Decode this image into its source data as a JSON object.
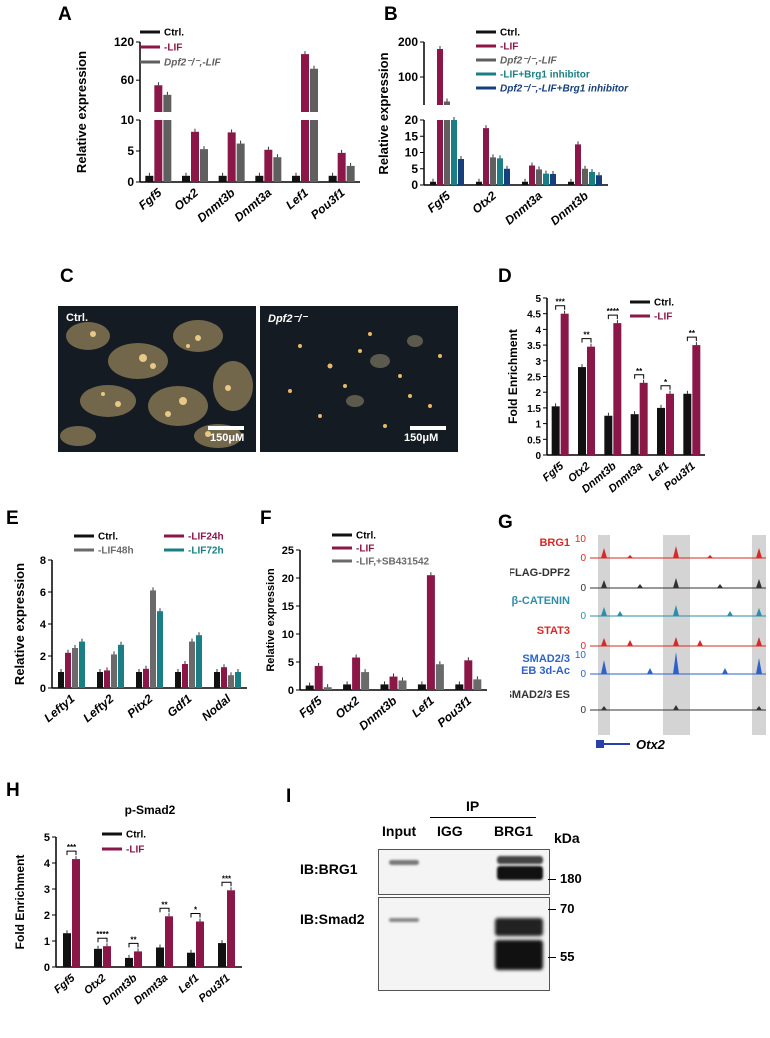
{
  "colors": {
    "ctrl": "#111111",
    "lif": "#8a1748",
    "ko": "#5f5f5f",
    "brg1": "#1a7e85",
    "kobrg1": "#173f7c",
    "gray": "#6a6a6a",
    "red": "#d62a28",
    "blue": "#2f62c8",
    "teal": "#2e8da8"
  },
  "ytitle": "Relative expression",
  "fe_title": "Fold Enrichment",
  "panels": {
    "A": {
      "label": "A",
      "legend": [
        "Ctrl.",
        "-LIF",
        "Dpf2⁻/⁻,-LIF"
      ]
    },
    "B": {
      "label": "B",
      "legend": [
        "Ctrl.",
        "-LIF",
        "Dpf2⁻/⁻,-LIF",
        "-LIF+Brg1 inhibitor",
        "Dpf2⁻/⁻,-LIF+Brg1 inhibitor"
      ]
    },
    "C": {
      "label": "C",
      "left": "Ctrl.",
      "right": "Dpf2⁻/⁻",
      "scale": "150μM"
    },
    "D": {
      "label": "D",
      "legend": [
        "Ctrl.",
        "-LIF"
      ]
    },
    "E": {
      "label": "E",
      "legend": [
        "Ctrl.",
        "-LIF24h",
        "-LIF48h",
        "-LIF72h"
      ]
    },
    "F": {
      "label": "F",
      "legend": [
        "Ctrl.",
        "-LIF",
        "-LIF,+SB431542"
      ]
    },
    "G": {
      "label": "G",
      "tracks": [
        "BRG1",
        "FLAG-DPF2",
        "β-CATENIN",
        "STAT3",
        "SMAD2/3\nEB 3d-Ac",
        "SMAD2/3 ES"
      ],
      "scale_top": "10",
      "scale_zero": "0",
      "gene": "Otx2"
    },
    "H": {
      "label": "H",
      "title": "p-Smad2",
      "legend": [
        "Ctrl.",
        "-LIF"
      ]
    },
    "I": {
      "label": "I",
      "ip": "IP",
      "lanes": [
        "Input",
        "IGG",
        "BRG1"
      ],
      "kda": "kDa",
      "rows": [
        "IB:BRG1",
        "IB:Smad2"
      ],
      "markers": [
        "180",
        "70",
        "55"
      ]
    }
  },
  "chart_data": [
    {
      "panel": "A",
      "type": "bar",
      "categories": [
        "Fgf5",
        "Otx2",
        "Dnmt3b",
        "Dnmt3a",
        "Lef1",
        "Pou3f1"
      ],
      "series": [
        {
          "name": "Ctrl.",
          "values": [
            1,
            1,
            1,
            1,
            1,
            1
          ]
        },
        {
          "name": "-LIF",
          "values": [
            52,
            8.1,
            8.0,
            5.2,
            101,
            4.7
          ]
        },
        {
          "name": "Dpf2⁻/⁻,-LIF",
          "values": [
            37,
            5.3,
            6.2,
            4.0,
            78,
            2.6
          ]
        }
      ],
      "ylim_lower": [
        0,
        10
      ],
      "ylim_upper": [
        10,
        120
      ],
      "ticks": [
        "0",
        "5",
        "10",
        "60",
        "120"
      ]
    },
    {
      "panel": "B",
      "type": "bar",
      "categories": [
        "Fgf5",
        "Otx2",
        "Dnmt3a",
        "Dnmt3b"
      ],
      "series": [
        {
          "name": "Ctrl.",
          "values": [
            1,
            1,
            1,
            1
          ]
        },
        {
          "name": "-LIF",
          "values": [
            180,
            17.5,
            6,
            12.5
          ]
        },
        {
          "name": "Dpf2⁻/⁻,-LIF",
          "values": [
            30,
            8.5,
            4.8,
            5
          ]
        },
        {
          "name": "-LIF+Brg1 inhibitor",
          "values": [
            20,
            8.2,
            3.5,
            4
          ]
        },
        {
          "name": "Dpf2⁻/⁻,-LIF+Brg1 inhibitor",
          "values": [
            8,
            5,
            3.4,
            3
          ]
        }
      ],
      "ylim_lower": [
        0,
        20
      ],
      "ylim_upper": [
        20,
        200
      ],
      "ticks": [
        "0",
        "5",
        "10",
        "15",
        "20",
        "100",
        "200"
      ]
    },
    {
      "panel": "D",
      "type": "bar",
      "ylabel": "Fold Enrichment",
      "categories": [
        "Fgf5",
        "Otx2",
        "Dnmt3b",
        "Dnmt3a",
        "Lef1",
        "Pou3f1"
      ],
      "series": [
        {
          "name": "Ctrl.",
          "values": [
            1.55,
            2.8,
            1.25,
            1.3,
            1.5,
            1.95
          ]
        },
        {
          "name": "-LIF",
          "values": [
            4.5,
            3.45,
            4.2,
            2.3,
            1.95,
            3.5
          ]
        }
      ],
      "ylim": [
        0,
        5
      ],
      "ticks": [
        "0",
        "0.5",
        "1",
        "1.5",
        "2",
        "2.5",
        "3",
        "3.5",
        "4",
        "4.5",
        "5"
      ],
      "sig": [
        "***",
        "**",
        "****",
        "**",
        "*",
        "**"
      ]
    },
    {
      "panel": "E",
      "type": "bar",
      "categories": [
        "Lefty1",
        "Lefty2",
        "Pitx2",
        "Gdf1",
        "Nodal"
      ],
      "series": [
        {
          "name": "Ctrl.",
          "values": [
            1,
            1,
            1,
            1,
            1
          ]
        },
        {
          "name": "-LIF24h",
          "values": [
            2.2,
            1.1,
            1.2,
            1.5,
            1.3
          ]
        },
        {
          "name": "-LIF48h",
          "values": [
            2.5,
            2.1,
            6.1,
            2.9,
            0.8
          ]
        },
        {
          "name": "-LIF72h",
          "values": [
            2.9,
            2.7,
            4.8,
            3.3,
            1.0
          ]
        }
      ],
      "ylim": [
        0,
        8
      ],
      "ticks": [
        "0",
        "2",
        "4",
        "6",
        "8"
      ]
    },
    {
      "panel": "F",
      "type": "bar",
      "categories": [
        "Fgf5",
        "Otx2",
        "Dnmt3b",
        "Lef1",
        "Pou3f1"
      ],
      "series": [
        {
          "name": "Ctrl.",
          "values": [
            0.8,
            1,
            1,
            1,
            1
          ]
        },
        {
          "name": "-LIF",
          "values": [
            4.3,
            5.8,
            2.4,
            20.5,
            5.3
          ]
        },
        {
          "name": "-LIF,+SB431542",
          "values": [
            0.5,
            3.2,
            1.7,
            4.6,
            1.9
          ]
        }
      ],
      "ylim": [
        0,
        25
      ],
      "ticks": [
        "0",
        "5",
        "10",
        "15",
        "20",
        "25"
      ]
    },
    {
      "panel": "H",
      "type": "bar",
      "title": "p-Smad2",
      "ylabel": "Fold Enrichment",
      "categories": [
        "Fgf5",
        "Otx2",
        "Dnmt3b",
        "Dnmt3a",
        "Lef1",
        "Pou3f1"
      ],
      "series": [
        {
          "name": "Ctrl.",
          "values": [
            1.3,
            0.7,
            0.35,
            0.75,
            0.55,
            0.92
          ]
        },
        {
          "name": "-LIF",
          "values": [
            4.15,
            0.8,
            0.6,
            1.95,
            1.75,
            2.95
          ]
        }
      ],
      "ylim": [
        0,
        5
      ],
      "ticks": [
        "0",
        "1",
        "2",
        "3",
        "4",
        "5"
      ],
      "sig": [
        "***",
        "****",
        "**",
        "**",
        "*",
        "***"
      ]
    }
  ]
}
